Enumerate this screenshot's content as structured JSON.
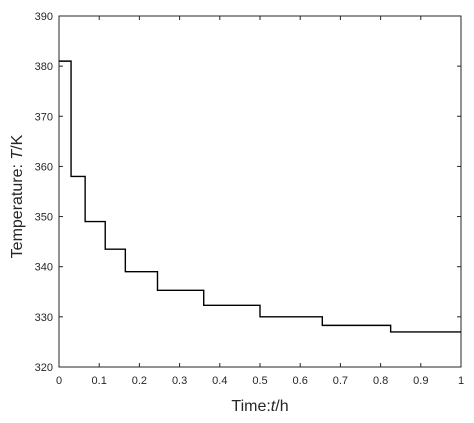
{
  "chart_data": {
    "type": "line",
    "step": true,
    "title": "",
    "xlabel_prefix": "Time:",
    "xlabel_var": "t",
    "xlabel_unit": "/h",
    "ylabel_prefix": "Temperature: ",
    "ylabel_var": "T",
    "ylabel_unit": "/K",
    "xlim": [
      0,
      1
    ],
    "ylim": [
      320,
      390
    ],
    "grid": false,
    "legend": "none",
    "xticks": [
      0,
      0.1,
      0.2,
      0.3,
      0.4,
      0.5,
      0.6,
      0.7,
      0.8,
      0.9,
      1
    ],
    "xtick_labels": [
      "0",
      "0.1",
      "0.2",
      "0.3",
      "0.4",
      "0.5",
      "0.6",
      "0.7",
      "0.8",
      "0.9",
      "1"
    ],
    "yticks": [
      320,
      330,
      340,
      350,
      360,
      370,
      380,
      390
    ],
    "ytick_labels": [
      "320",
      "330",
      "340",
      "350",
      "360",
      "370",
      "380",
      "390"
    ],
    "x": [
      0,
      0.03,
      0.065,
      0.115,
      0.165,
      0.245,
      0.36,
      0.5,
      0.655,
      0.825,
      1
    ],
    "y": [
      381,
      358,
      349,
      343.5,
      339,
      335.3,
      332.3,
      330,
      328.3,
      327,
      327
    ],
    "line_color": "#000000"
  }
}
